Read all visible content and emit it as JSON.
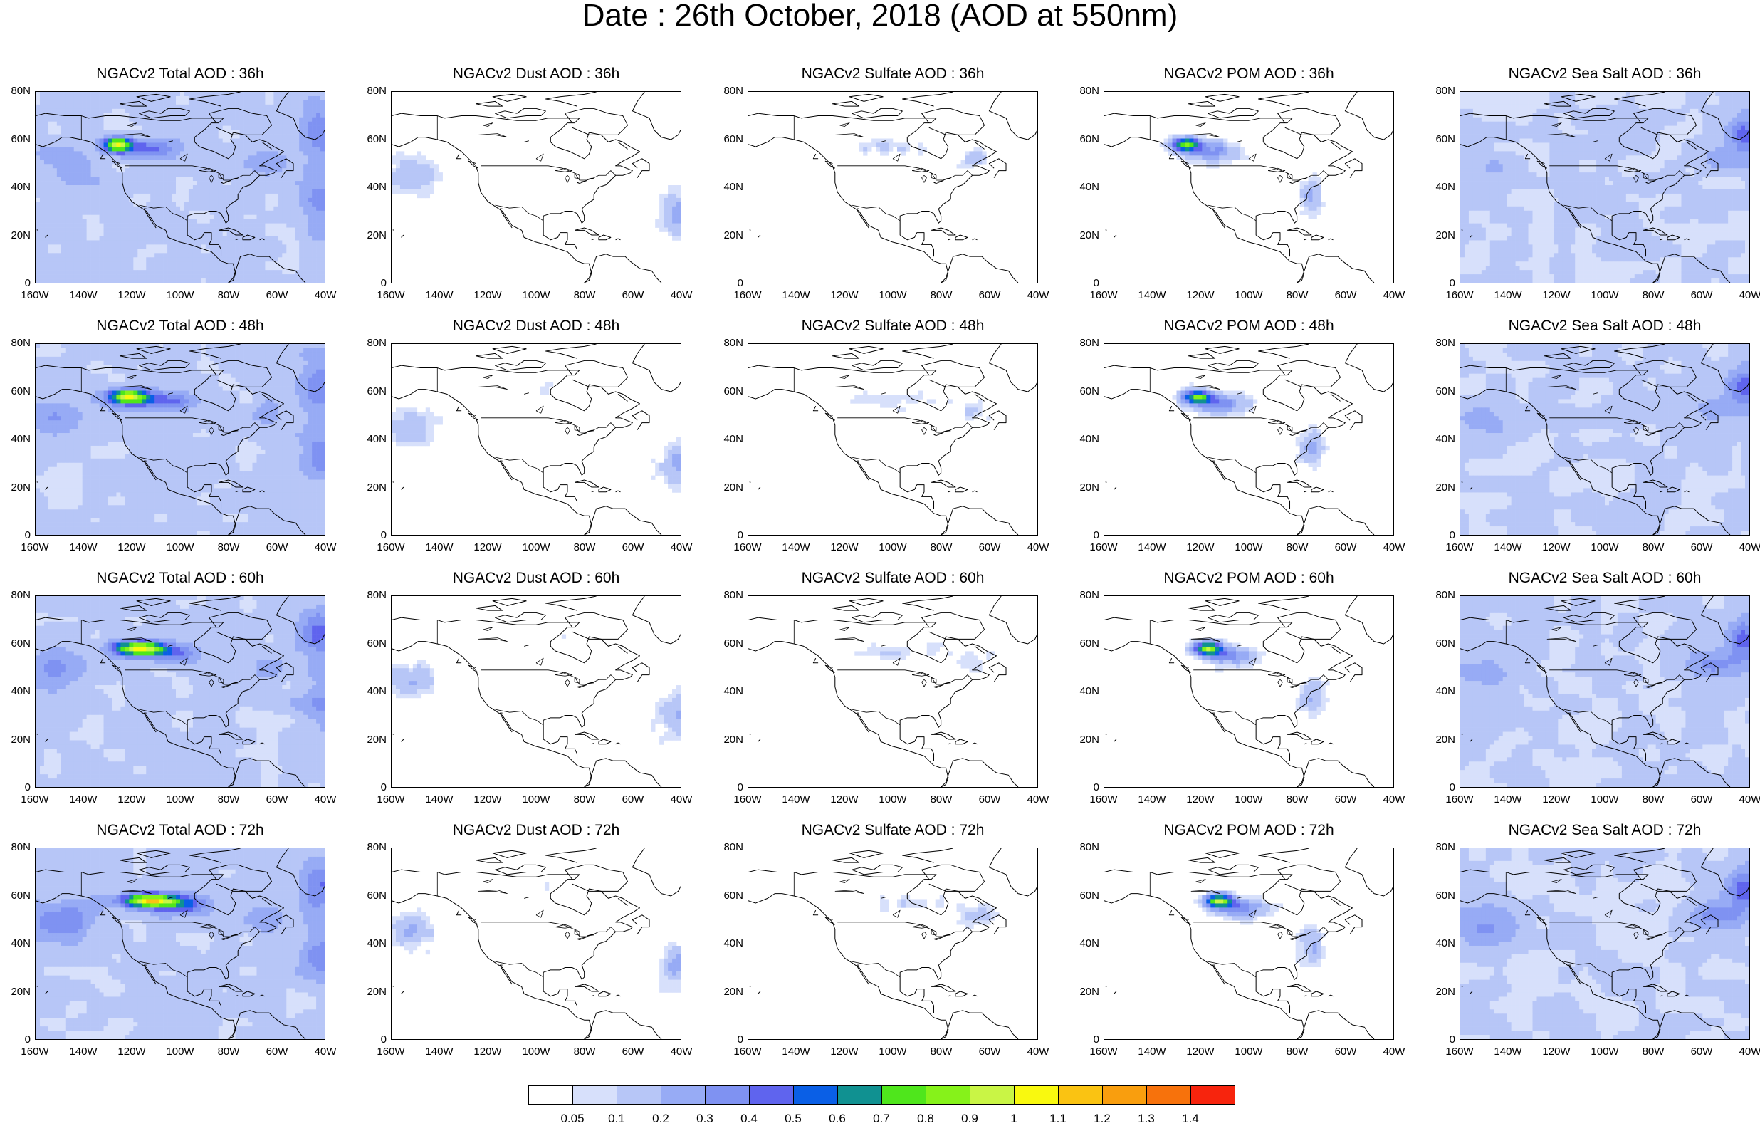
{
  "title": "Date : 26th October, 2018 (AOD at 550nm)",
  "panels": [
    [
      "NGACv2 Total AOD : 36h",
      "NGACv2 Dust AOD : 36h",
      "NGACv2 Sulfate AOD : 36h",
      "NGACv2 POM AOD : 36h",
      "NGACv2 Sea Salt AOD : 36h"
    ],
    [
      "NGACv2 Total AOD : 48h",
      "NGACv2 Dust AOD : 48h",
      "NGACv2 Sulfate AOD : 48h",
      "NGACv2 POM AOD : 48h",
      "NGACv2 Sea Salt AOD : 48h"
    ],
    [
      "NGACv2 Total AOD : 60h",
      "NGACv2 Dust AOD : 60h",
      "NGACv2 Sulfate AOD : 60h",
      "NGACv2 POM AOD : 60h",
      "NGACv2 Sea Salt AOD : 60h"
    ],
    [
      "NGACv2 Total AOD : 72h",
      "NGACv2 Dust AOD : 72h",
      "NGACv2 Sulfate AOD : 72h",
      "NGACv2 POM AOD : 72h",
      "NGACv2 Sea Salt  AOD : 72h"
    ]
  ],
  "axes": {
    "x_ticks": [
      "160W",
      "140W",
      "120W",
      "100W",
      "80W",
      "60W",
      "40W"
    ],
    "y_ticks": [
      "80N",
      "60N",
      "40N",
      "20N",
      "0"
    ]
  },
  "colorbar": {
    "labels": [
      "0.05",
      "0.1",
      "0.2",
      "0.3",
      "0.4",
      "0.5",
      "0.6",
      "0.7",
      "0.8",
      "0.9",
      "1",
      "1.1",
      "1.2",
      "1.3",
      "1.4"
    ],
    "colors": [
      "#ffffff",
      "#d7e0fb",
      "#b7c6f7",
      "#97abf5",
      "#7f92f2",
      "#5f64ee",
      "#0a5fe6",
      "#109191",
      "#4fe61c",
      "#86f21a",
      "#c9f545",
      "#f9f90f",
      "#fac312",
      "#f99e0e",
      "#f7720c",
      "#f7240d"
    ]
  },
  "palette": {
    "land_line": "#000000",
    "aod_low": "#d7e0fb",
    "aod_mid": "#b7c6f7",
    "aod_high": "#97abf5",
    "plume_green": "#86f21a",
    "plume_yellow": "#f9f90f",
    "plume_teal": "#109191"
  }
}
